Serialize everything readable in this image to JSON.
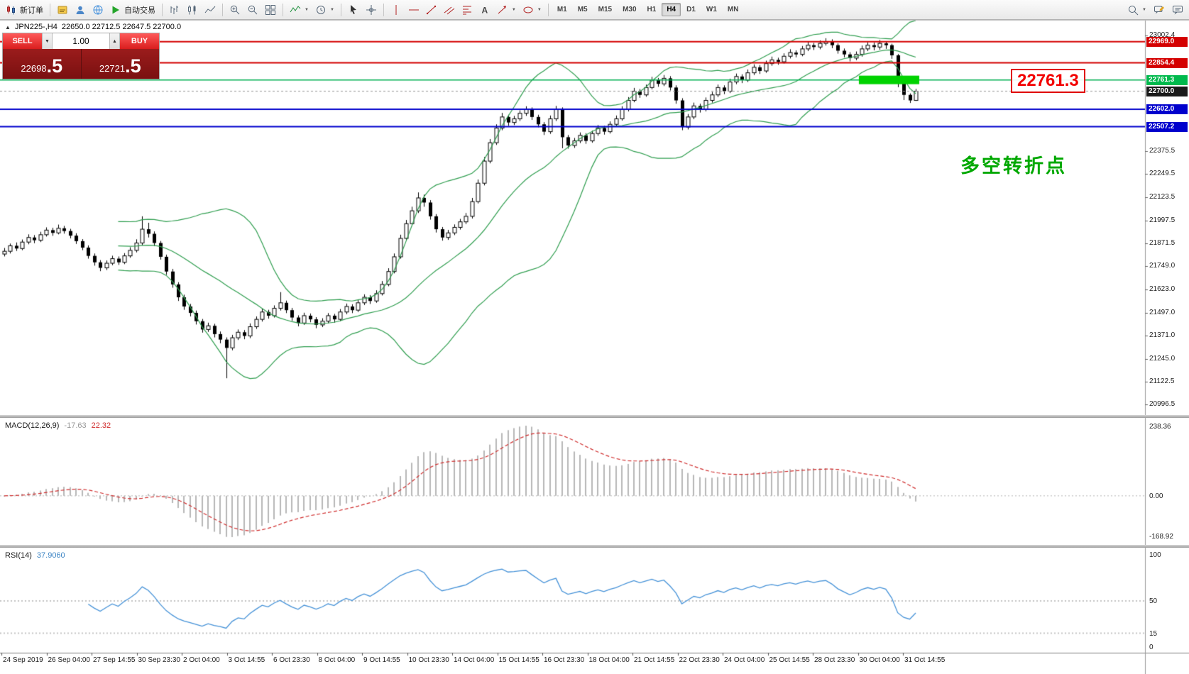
{
  "toolbar": {
    "new_order_label": "新订单",
    "autotrade_label": "自动交易",
    "timeframes": [
      "M1",
      "M5",
      "M15",
      "M30",
      "H1",
      "H4",
      "D1",
      "W1",
      "MN"
    ],
    "active_timeframe": "H4",
    "icon_names": [
      "new-order-icon",
      "strategies-icon",
      "profile-icon",
      "community-icon",
      "autotrading-icon",
      "bar-chart-icon",
      "candlestick-chart-icon",
      "line-chart-icon",
      "zoom-in-icon",
      "zoom-out-icon",
      "tile-windows-icon",
      "indicators-icon",
      "periods-icon",
      "cursor-icon",
      "crosshair-icon",
      "vertical-line-icon",
      "horizontal-line-icon",
      "trendline-icon",
      "channel-icon",
      "fibonacci-icon",
      "text-icon",
      "arrow-tool-icon",
      "shapes-icon",
      "search-icon",
      "new-chat-icon",
      "chat-icon",
      "volume-down-icon",
      "volume-up-icon",
      "symbol-triangle-icon"
    ]
  },
  "chart_header": {
    "symbol_period": "JPN225-,H4",
    "ohlc": "22650.0 22712.5 22647.5 22700.0"
  },
  "trade_panel": {
    "sell_label": "SELL",
    "buy_label": "BUY",
    "volume": "1.00",
    "vol_down_glyph": "▼",
    "vol_up_glyph": "▲",
    "sell_price": "22698.5",
    "buy_price": "22721.5",
    "sell_price_small": "22698",
    "sell_price_big": ".5",
    "buy_price_small": "22721",
    "buy_price_big": ".5"
  },
  "annotations": {
    "level_callout": "22761.3",
    "turning_point_note": "多空转折点"
  },
  "chart_data": {
    "type": "candlestick",
    "symbol": "JPN225-",
    "timeframe": "H4",
    "ohlc_display": {
      "open": "22650.0",
      "high": "22712.5",
      "low": "22647.5",
      "close": "22700.0"
    },
    "candles": [
      [
        21815,
        21848,
        21802,
        21830
      ],
      [
        21830,
        21872,
        21818,
        21860
      ],
      [
        21860,
        21878,
        21832,
        21845
      ],
      [
        21845,
        21894,
        21836,
        21880
      ],
      [
        21880,
        21922,
        21868,
        21905
      ],
      [
        21905,
        21918,
        21874,
        21890
      ],
      [
        21890,
        21936,
        21880,
        21920
      ],
      [
        21920,
        21960,
        21910,
        21945
      ],
      [
        21945,
        21958,
        21914,
        21930
      ],
      [
        21930,
        21975,
        21922,
        21955
      ],
      [
        21955,
        21968,
        21926,
        21940
      ],
      [
        21940,
        21952,
        21900,
        21915
      ],
      [
        21915,
        21928,
        21870,
        21885
      ],
      [
        21885,
        21896,
        21836,
        21850
      ],
      [
        21850,
        21862,
        21790,
        21805
      ],
      [
        21805,
        21818,
        21752,
        21770
      ],
      [
        21770,
        21782,
        21722,
        21740
      ],
      [
        21740,
        21780,
        21728,
        21765
      ],
      [
        21765,
        21806,
        21754,
        21790
      ],
      [
        21790,
        21802,
        21756,
        21770
      ],
      [
        21770,
        21820,
        21760,
        21805
      ],
      [
        21805,
        21852,
        21795,
        21835
      ],
      [
        21835,
        21895,
        21824,
        21875
      ],
      [
        21875,
        22020,
        21862,
        21950
      ],
      [
        21950,
        21985,
        21905,
        21925
      ],
      [
        21925,
        21938,
        21858,
        21875
      ],
      [
        21875,
        21886,
        21785,
        21800
      ],
      [
        21800,
        21812,
        21702,
        21720
      ],
      [
        21720,
        21734,
        21632,
        21650
      ],
      [
        21650,
        21662,
        21560,
        21580
      ],
      [
        21580,
        21594,
        21512,
        21530
      ],
      [
        21530,
        21544,
        21476,
        21495
      ],
      [
        21495,
        21508,
        21432,
        21450
      ],
      [
        21450,
        21462,
        21388,
        21405
      ],
      [
        21405,
        21442,
        21392,
        21425
      ],
      [
        21425,
        21436,
        21362,
        21380
      ],
      [
        21380,
        21394,
        21330,
        21350
      ],
      [
        21350,
        21362,
        21140,
        21305
      ],
      [
        21305,
        21376,
        21292,
        21360
      ],
      [
        21360,
        21405,
        21348,
        21390
      ],
      [
        21390,
        21402,
        21352,
        21370
      ],
      [
        21370,
        21438,
        21358,
        21420
      ],
      [
        21420,
        21476,
        21408,
        21460
      ],
      [
        21460,
        21518,
        21448,
        21500
      ],
      [
        21500,
        21512,
        21464,
        21480
      ],
      [
        21480,
        21536,
        21470,
        21520
      ],
      [
        21520,
        21608,
        21508,
        21550
      ],
      [
        21550,
        21562,
        21494,
        21510
      ],
      [
        21510,
        21522,
        21452,
        21470
      ],
      [
        21470,
        21482,
        21422,
        21440
      ],
      [
        21440,
        21496,
        21430,
        21480
      ],
      [
        21480,
        21492,
        21444,
        21460
      ],
      [
        21460,
        21472,
        21412,
        21430
      ],
      [
        21430,
        21466,
        21418,
        21450
      ],
      [
        21450,
        21494,
        21438,
        21480
      ],
      [
        21480,
        21490,
        21442,
        21460
      ],
      [
        21460,
        21516,
        21450,
        21500
      ],
      [
        21500,
        21546,
        21488,
        21530
      ],
      [
        21530,
        21542,
        21494,
        21510
      ],
      [
        21510,
        21566,
        21500,
        21550
      ],
      [
        21550,
        21596,
        21538,
        21580
      ],
      [
        21580,
        21592,
        21544,
        21560
      ],
      [
        21560,
        21618,
        21550,
        21600
      ],
      [
        21600,
        21668,
        21590,
        21650
      ],
      [
        21650,
        21738,
        21640,
        21720
      ],
      [
        21720,
        21818,
        21710,
        21800
      ],
      [
        21800,
        21920,
        21790,
        21900
      ],
      [
        21900,
        22000,
        21888,
        21980
      ],
      [
        21980,
        22072,
        21968,
        22050
      ],
      [
        22050,
        22150,
        22038,
        22120
      ],
      [
        22120,
        22138,
        22072,
        22095
      ],
      [
        22095,
        22108,
        22002,
        22020
      ],
      [
        22020,
        22032,
        21932,
        21950
      ],
      [
        21950,
        21962,
        21888,
        21905
      ],
      [
        21905,
        21946,
        21892,
        21930
      ],
      [
        21930,
        21976,
        21918,
        21960
      ],
      [
        21960,
        22006,
        21948,
        21990
      ],
      [
        21990,
        22038,
        21978,
        22020
      ],
      [
        22020,
        22120,
        22008,
        22100
      ],
      [
        22100,
        22220,
        22090,
        22200
      ],
      [
        22200,
        22342,
        22188,
        22320
      ],
      [
        22320,
        22440,
        22308,
        22420
      ],
      [
        22420,
        22520,
        22408,
        22500
      ],
      [
        22500,
        22582,
        22488,
        22560
      ],
      [
        22560,
        22572,
        22512,
        22530
      ],
      [
        22530,
        22566,
        22516,
        22550
      ],
      [
        22550,
        22596,
        22538,
        22580
      ],
      [
        22580,
        22618,
        22566,
        22600
      ],
      [
        22600,
        22612,
        22544,
        22560
      ],
      [
        22560,
        22572,
        22504,
        22520
      ],
      [
        22520,
        22532,
        22462,
        22480
      ],
      [
        22480,
        22568,
        22468,
        22550
      ],
      [
        22550,
        22620,
        22538,
        22600
      ],
      [
        22600,
        22612,
        22390,
        22450
      ],
      [
        22450,
        22462,
        22388,
        22405
      ],
      [
        22405,
        22446,
        22392,
        22430
      ],
      [
        22430,
        22476,
        22418,
        22460
      ],
      [
        22460,
        22472,
        22414,
        22430
      ],
      [
        22430,
        22486,
        22420,
        22470
      ],
      [
        22470,
        22516,
        22458,
        22500
      ],
      [
        22500,
        22512,
        22464,
        22480
      ],
      [
        22480,
        22536,
        22470,
        22520
      ],
      [
        22520,
        22568,
        22508,
        22550
      ],
      [
        22550,
        22618,
        22540,
        22600
      ],
      [
        22600,
        22668,
        22590,
        22650
      ],
      [
        22650,
        22718,
        22640,
        22700
      ],
      [
        22700,
        22712,
        22664,
        22680
      ],
      [
        22680,
        22736,
        22670,
        22720
      ],
      [
        22720,
        22778,
        22710,
        22760
      ],
      [
        22760,
        22772,
        22724,
        22740
      ],
      [
        22740,
        22788,
        22728,
        22770
      ],
      [
        22770,
        22782,
        22704,
        22720
      ],
      [
        22720,
        22732,
        22632,
        22650
      ],
      [
        22650,
        22662,
        22488,
        22505
      ],
      [
        22505,
        22576,
        22492,
        22560
      ],
      [
        22560,
        22638,
        22548,
        22620
      ],
      [
        22620,
        22632,
        22584,
        22600
      ],
      [
        22600,
        22666,
        22590,
        22650
      ],
      [
        22650,
        22696,
        22638,
        22680
      ],
      [
        22680,
        22736,
        22668,
        22720
      ],
      [
        22720,
        22732,
        22684,
        22700
      ],
      [
        22700,
        22768,
        22690,
        22750
      ],
      [
        22750,
        22796,
        22738,
        22780
      ],
      [
        22780,
        22792,
        22744,
        22760
      ],
      [
        22760,
        22818,
        22750,
        22800
      ],
      [
        22800,
        22846,
        22788,
        22830
      ],
      [
        22830,
        22842,
        22794,
        22810
      ],
      [
        22810,
        22866,
        22800,
        22850
      ],
      [
        22850,
        22888,
        22838,
        22870
      ],
      [
        22870,
        22882,
        22844,
        22860
      ],
      [
        22860,
        22906,
        22850,
        22890
      ],
      [
        22890,
        22928,
        22878,
        22910
      ],
      [
        22910,
        22922,
        22884,
        22900
      ],
      [
        22900,
        22946,
        22890,
        22930
      ],
      [
        22930,
        22968,
        22918,
        22950
      ],
      [
        22950,
        22962,
        22924,
        22940
      ],
      [
        22940,
        22976,
        22928,
        22960
      ],
      [
        22960,
        22988,
        22948,
        22970
      ],
      [
        22970,
        22982,
        22934,
        22950
      ],
      [
        22950,
        22960,
        22904,
        22920
      ],
      [
        22920,
        22932,
        22884,
        22900
      ],
      [
        22900,
        22912,
        22862,
        22880
      ],
      [
        22880,
        22916,
        22868,
        22900
      ],
      [
        22900,
        22948,
        22888,
        22930
      ],
      [
        22930,
        22966,
        22918,
        22950
      ],
      [
        22950,
        22964,
        22922,
        22940
      ],
      [
        22940,
        22978,
        22926,
        22960
      ],
      [
        22960,
        22972,
        22930,
        22950
      ],
      [
        22950,
        22958,
        22876,
        22895
      ],
      [
        22895,
        22902,
        22722,
        22750
      ],
      [
        22750,
        22758,
        22652,
        22680
      ],
      [
        22680,
        22688,
        22636,
        22650
      ],
      [
        22650,
        22712.5,
        22647.5,
        22700
      ]
    ],
    "x_labels": [
      "24 Sep 2019",
      "26 Sep 04:00",
      "27 Sep 14:55",
      "30 Sep 23:30",
      "2 Oct 04:00",
      "3 Oct 14:55",
      "6 Oct 23:30",
      "8 Oct 04:00",
      "9 Oct 14:55",
      "10 Oct 23:30",
      "14 Oct 04:00",
      "15 Oct 14:55",
      "16 Oct 23:30",
      "18 Oct 04:00",
      "21 Oct 14:55",
      "22 Oct 23:30",
      "24 Oct 04:00",
      "25 Oct 14:55",
      "28 Oct 23:30",
      "30 Oct 04:00",
      "31 Oct 14:55"
    ],
    "y_axis": {
      "ticks": [
        {
          "price": 23002.4,
          "label": "23002.4"
        },
        {
          "price": 22375.5,
          "label": "22375.5"
        },
        {
          "price": 22249.5,
          "label": "22249.5"
        },
        {
          "price": 22123.5,
          "label": "22123.5"
        },
        {
          "price": 21997.5,
          "label": "21997.5"
        },
        {
          "price": 21871.5,
          "label": "21871.5"
        },
        {
          "price": 21749.0,
          "label": "21749.0"
        },
        {
          "price": 21623.0,
          "label": "21623.0"
        },
        {
          "price": 21497.0,
          "label": "21497.0"
        },
        {
          "price": 21371.0,
          "label": "21371.0"
        },
        {
          "price": 21245.0,
          "label": "21245.0"
        },
        {
          "price": 21122.5,
          "label": "21122.5"
        },
        {
          "price": 20996.5,
          "label": "20996.5"
        }
      ],
      "tags": [
        {
          "price": 22969.0,
          "label": "22969.0",
          "bg": "#d40000",
          "fg": "#ffffff"
        },
        {
          "price": 22854.4,
          "label": "22854.4",
          "bg": "#d40000",
          "fg": "#ffffff"
        },
        {
          "price": 22761.3,
          "label": "22761.3",
          "bg": "#00b94d",
          "fg": "#ffffff"
        },
        {
          "price": 22700.0,
          "label": "22700.0",
          "bg": "#1a1a1a",
          "fg": "#ffffff"
        },
        {
          "price": 22602.0,
          "label": "22602.0",
          "bg": "#0000cd",
          "fg": "#ffffff"
        },
        {
          "price": 22507.2,
          "label": "22507.2",
          "bg": "#0000cd",
          "fg": "#ffffff"
        }
      ]
    },
    "hlines": [
      {
        "price": 22969.0,
        "color": "#d40000",
        "width": 2
      },
      {
        "price": 22854.4,
        "color": "#d40000",
        "width": 2
      },
      {
        "price": 22761.3,
        "color": "#00b050",
        "width": 1.5
      },
      {
        "price": 22602.0,
        "color": "#0000cd",
        "width": 2
      },
      {
        "price": 22507.2,
        "color": "#0000cd",
        "width": 2
      }
    ],
    "current_price": {
      "price": 22700.0,
      "label": "22700.0"
    },
    "highlight_rect": {
      "price": 22761.3,
      "bar_start": 143,
      "bar_end": 152,
      "color": "#00d300"
    },
    "indicators": {
      "bollinger": {
        "period": 20,
        "deviation": 2,
        "color": "#2f9e4f"
      },
      "macd": {
        "label": "MACD(12,26,9)",
        "main": "-17.63",
        "signal": "22.32",
        "histogram_color": "#b8b8b8",
        "signal_color": "#d02c2c",
        "scale_labels": [
          "238.36",
          "0.00",
          "-168.92"
        ]
      },
      "rsi": {
        "label": "RSI(14)",
        "value": "37.9060",
        "color": "#4592d8",
        "levels": [
          100,
          50,
          15,
          0
        ],
        "level_labels": [
          "100",
          "50",
          "15",
          "0"
        ]
      }
    }
  }
}
